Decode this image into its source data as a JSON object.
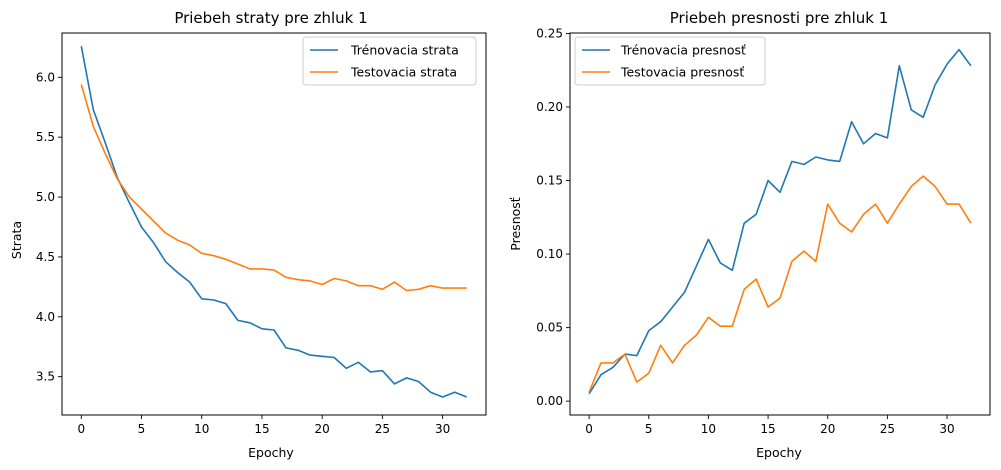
{
  "chart_data": [
    {
      "type": "line",
      "title": "Priebeh straty pre zhluk 1",
      "xlabel": "Epochy",
      "ylabel": "Strata",
      "xlim": [
        -1.6,
        33.6
      ],
      "ylim": [
        3.18,
        6.37
      ],
      "xticks": [
        0,
        5,
        10,
        15,
        20,
        25,
        30
      ],
      "yticks": [
        3.5,
        4.0,
        4.5,
        5.0,
        5.5,
        6.0
      ],
      "ytick_labels": [
        "3.5",
        "4.0",
        "4.5",
        "5.0",
        "5.5",
        "6.0"
      ],
      "legend_position": "upper-right",
      "x": [
        0,
        1,
        2,
        3,
        4,
        5,
        6,
        7,
        8,
        9,
        10,
        11,
        12,
        13,
        14,
        15,
        16,
        17,
        18,
        19,
        20,
        21,
        22,
        23,
        24,
        25,
        26,
        27,
        28,
        29,
        30,
        31,
        32
      ],
      "series": [
        {
          "name": "Trénovacia strata",
          "color": "#1f77b4",
          "values": [
            6.26,
            5.73,
            5.45,
            5.16,
            4.95,
            4.75,
            4.62,
            4.46,
            4.37,
            4.29,
            4.15,
            4.14,
            4.11,
            3.97,
            3.95,
            3.9,
            3.89,
            3.74,
            3.72,
            3.68,
            3.67,
            3.66,
            3.57,
            3.62,
            3.54,
            3.55,
            3.44,
            3.49,
            3.46,
            3.37,
            3.33,
            3.37,
            3.33
          ]
        },
        {
          "name": "Testovacia strata",
          "color": "#ff7f0e",
          "values": [
            5.94,
            5.59,
            5.36,
            5.15,
            5.0,
            4.9,
            4.8,
            4.7,
            4.64,
            4.6,
            4.53,
            4.51,
            4.48,
            4.44,
            4.4,
            4.4,
            4.39,
            4.33,
            4.31,
            4.3,
            4.27,
            4.32,
            4.3,
            4.26,
            4.26,
            4.23,
            4.29,
            4.22,
            4.23,
            4.26,
            4.24,
            4.24,
            4.24
          ]
        }
      ]
    },
    {
      "type": "line",
      "title": "Priebeh presnosti pre zhluk 1",
      "xlabel": "Epochy",
      "ylabel": "Presnosť",
      "xlim": [
        -1.6,
        33.6
      ],
      "ylim": [
        -0.0094,
        0.2503
      ],
      "xticks": [
        0,
        5,
        10,
        15,
        20,
        25,
        30
      ],
      "yticks": [
        0.0,
        0.05,
        0.1,
        0.15,
        0.2,
        0.25
      ],
      "ytick_labels": [
        "0.00",
        "0.05",
        "0.10",
        "0.15",
        "0.20",
        "0.25"
      ],
      "legend_position": "upper-left",
      "x": [
        0,
        1,
        2,
        3,
        4,
        5,
        6,
        7,
        8,
        9,
        10,
        11,
        12,
        13,
        14,
        15,
        16,
        17,
        18,
        19,
        20,
        21,
        22,
        23,
        24,
        25,
        26,
        27,
        28,
        29,
        30,
        31,
        32
      ],
      "series": [
        {
          "name": "Trénovacia presnosť",
          "color": "#1f77b4",
          "values": [
            0.005,
            0.018,
            0.023,
            0.032,
            0.031,
            0.048,
            0.054,
            0.064,
            0.074,
            0.092,
            0.11,
            0.094,
            0.089,
            0.121,
            0.127,
            0.15,
            0.142,
            0.163,
            0.161,
            0.166,
            0.164,
            0.163,
            0.19,
            0.175,
            0.182,
            0.179,
            0.228,
            0.198,
            0.193,
            0.215,
            0.229,
            0.239,
            0.228
          ]
        },
        {
          "name": "Testovacia presnosť",
          "color": "#ff7f0e",
          "values": [
            0.006,
            0.026,
            0.026,
            0.032,
            0.013,
            0.019,
            0.038,
            0.026,
            0.038,
            0.045,
            0.057,
            0.051,
            0.051,
            0.076,
            0.083,
            0.064,
            0.07,
            0.095,
            0.102,
            0.095,
            0.134,
            0.121,
            0.115,
            0.127,
            0.134,
            0.121,
            0.134,
            0.146,
            0.153,
            0.146,
            0.134,
            0.134,
            0.121
          ]
        }
      ]
    }
  ]
}
